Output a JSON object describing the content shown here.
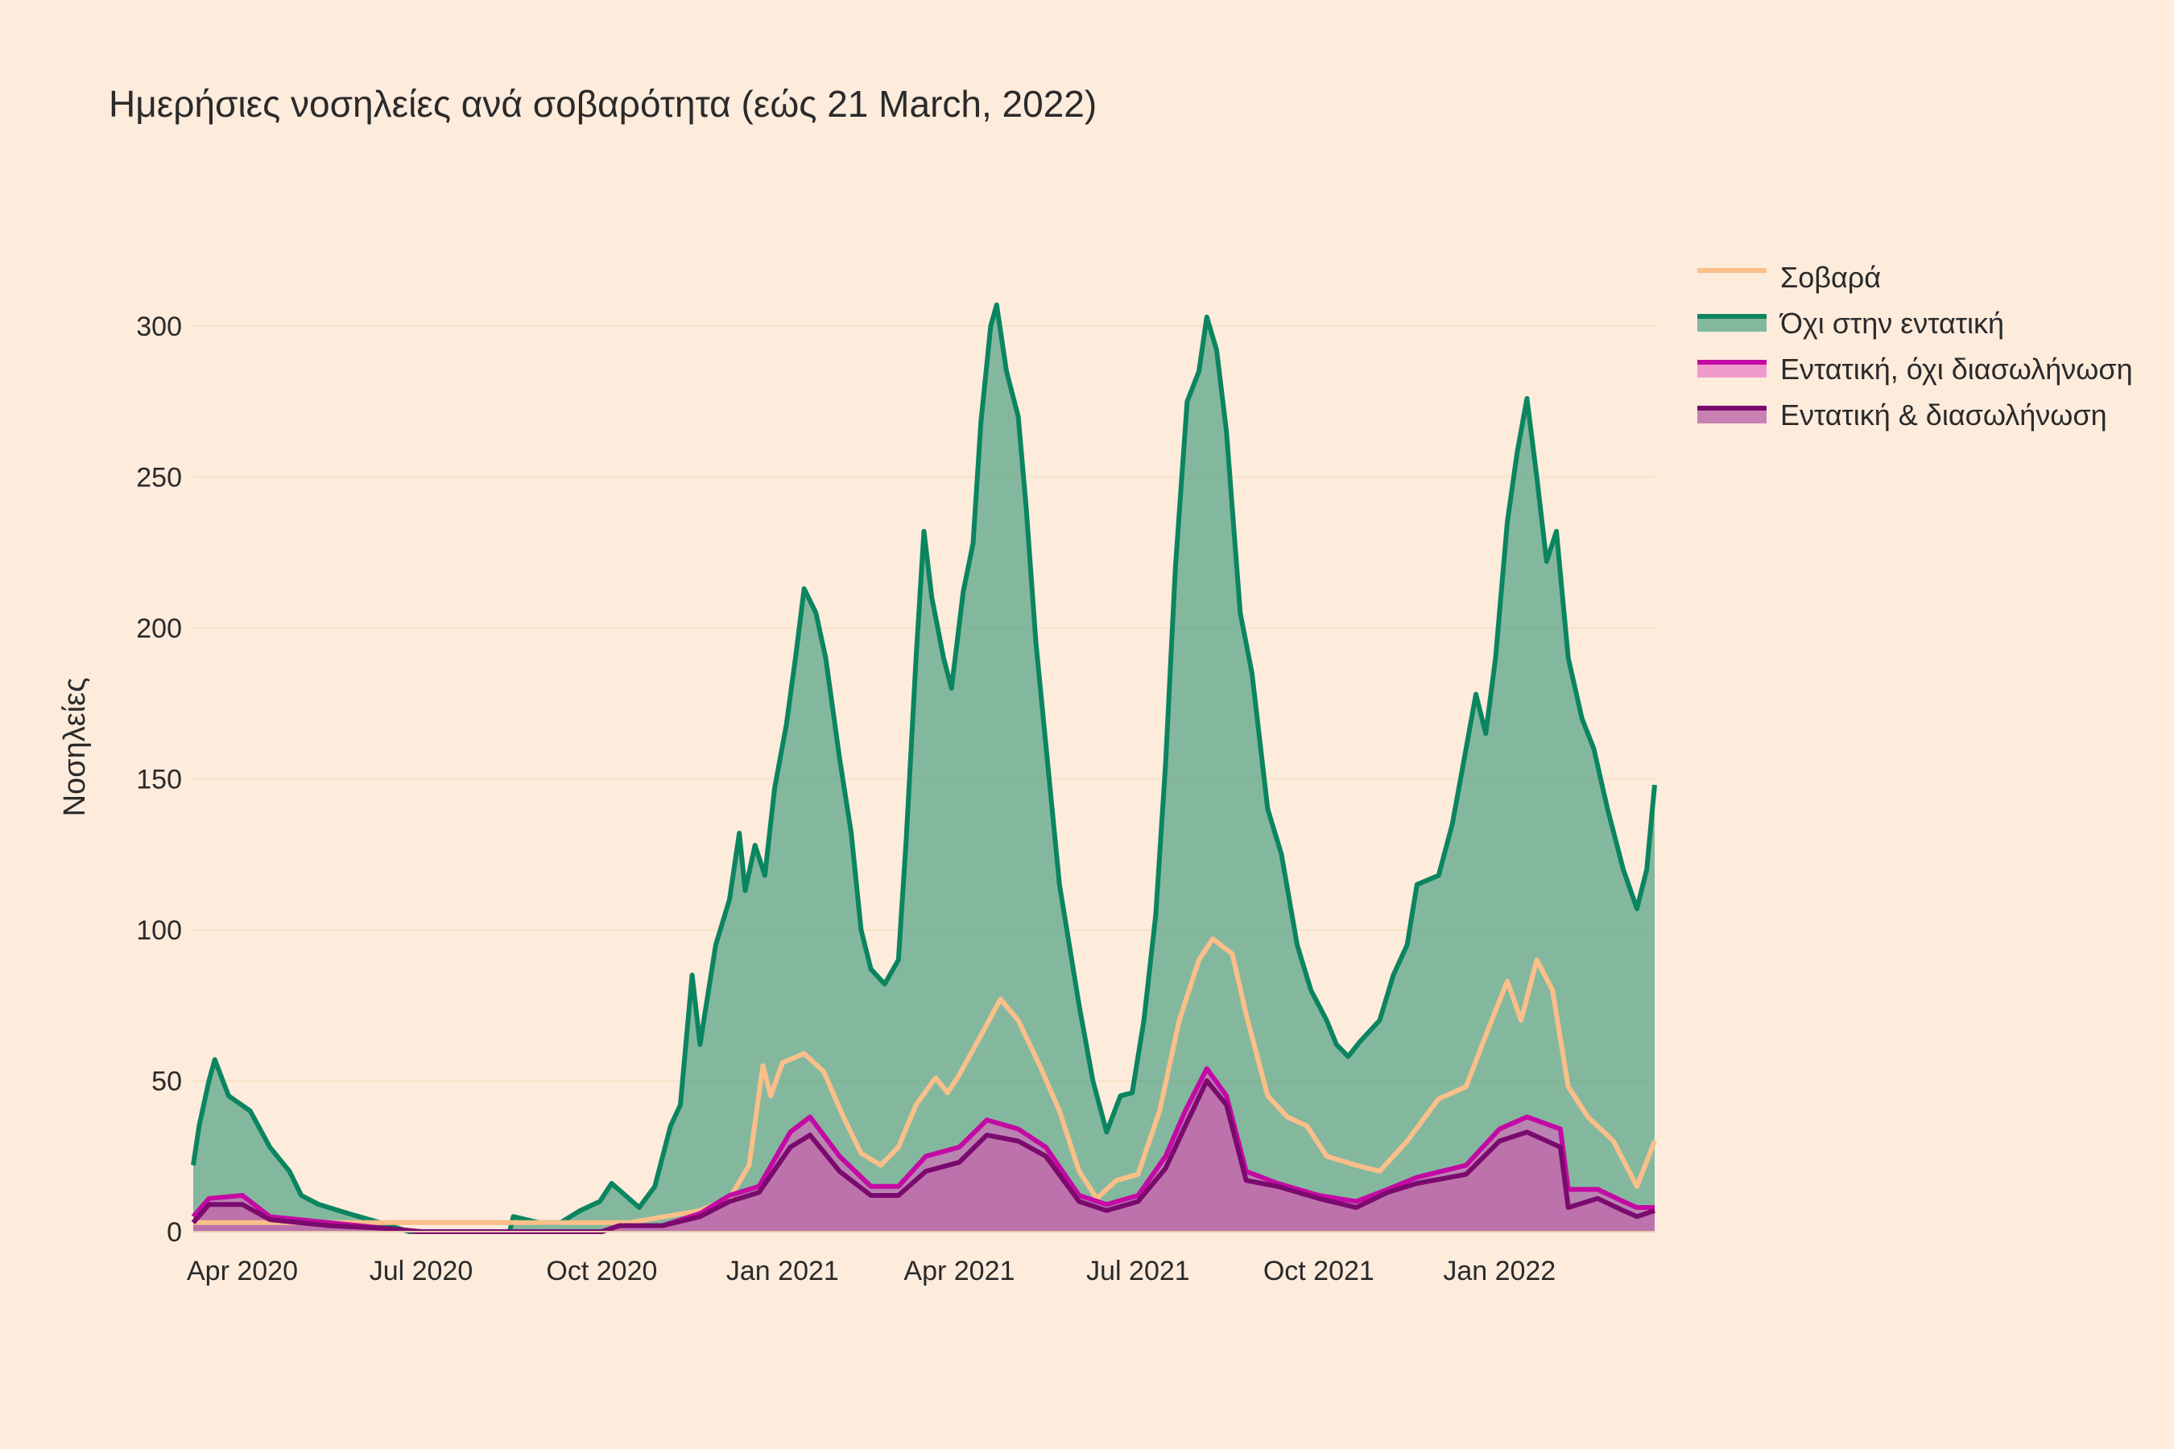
{
  "chart_data": {
    "type": "area",
    "title": "Ημερήσιες νοσηλείες ανά σοβαρότητα (εώς 21 March, 2022)",
    "xlabel": "",
    "ylabel": "Νοσηλείες",
    "x_range": [
      "2020-03-07",
      "2022-03-21"
    ],
    "ylim": [
      0,
      320
    ],
    "y_ticks": [
      0,
      50,
      100,
      150,
      200,
      250,
      300
    ],
    "x_ticks": [
      {
        "date": "2020-04-01",
        "label": "Apr 2020"
      },
      {
        "date": "2020-07-01",
        "label": "Jul 2020"
      },
      {
        "date": "2020-10-01",
        "label": "Oct 2020"
      },
      {
        "date": "2021-01-01",
        "label": "Jan 2021"
      },
      {
        "date": "2021-04-01",
        "label": "Apr 2021"
      },
      {
        "date": "2021-07-01",
        "label": "Jul 2021"
      },
      {
        "date": "2021-10-01",
        "label": "Oct 2021"
      },
      {
        "date": "2022-01-01",
        "label": "Jan 2022"
      }
    ],
    "grid": true,
    "legend_position": "top-right",
    "series": [
      {
        "name": "Σοβαρά",
        "line_color": "#fbbf8a",
        "fill_color": null,
        "points": [
          [
            "2020-03-07",
            3
          ],
          [
            "2020-10-15",
            3
          ],
          [
            "2020-11-20",
            7
          ],
          [
            "2020-12-05",
            11
          ],
          [
            "2020-12-15",
            22
          ],
          [
            "2020-12-22",
            55
          ],
          [
            "2020-12-26",
            45
          ],
          [
            "2021-01-01",
            56
          ],
          [
            "2021-01-12",
            59
          ],
          [
            "2021-01-22",
            53
          ],
          [
            "2021-02-01",
            38
          ],
          [
            "2021-02-10",
            26
          ],
          [
            "2021-02-20",
            22
          ],
          [
            "2021-03-01",
            28
          ],
          [
            "2021-03-10",
            42
          ],
          [
            "2021-03-20",
            51
          ],
          [
            "2021-03-26",
            46
          ],
          [
            "2021-04-01",
            52
          ],
          [
            "2021-04-12",
            65
          ],
          [
            "2021-04-22",
            77
          ],
          [
            "2021-05-01",
            70
          ],
          [
            "2021-05-12",
            55
          ],
          [
            "2021-05-22",
            40
          ],
          [
            "2021-06-01",
            20
          ],
          [
            "2021-06-10",
            11
          ],
          [
            "2021-06-20",
            17
          ],
          [
            "2021-07-01",
            19
          ],
          [
            "2021-07-12",
            40
          ],
          [
            "2021-07-22",
            70
          ],
          [
            "2021-08-01",
            90
          ],
          [
            "2021-08-08",
            97
          ],
          [
            "2021-08-18",
            92
          ],
          [
            "2021-08-25",
            72
          ],
          [
            "2021-09-05",
            45
          ],
          [
            "2021-09-15",
            38
          ],
          [
            "2021-09-25",
            35
          ],
          [
            "2021-10-05",
            25
          ],
          [
            "2021-10-20",
            22
          ],
          [
            "2021-11-01",
            20
          ],
          [
            "2021-11-15",
            30
          ],
          [
            "2021-12-01",
            44
          ],
          [
            "2021-12-15",
            48
          ],
          [
            "2021-12-25",
            65
          ],
          [
            "2022-01-05",
            83
          ],
          [
            "2022-01-12",
            70
          ],
          [
            "2022-01-20",
            90
          ],
          [
            "2022-01-28",
            80
          ],
          [
            "2022-02-05",
            48
          ],
          [
            "2022-02-15",
            38
          ],
          [
            "2022-02-28",
            30
          ],
          [
            "2022-03-12",
            15
          ],
          [
            "2022-03-21",
            30
          ]
        ]
      },
      {
        "name": "Όχι στην εντατική",
        "line_color": "#0b8560",
        "fill_color": "rgba(11,133,96,0.5)",
        "points": [
          [
            "2020-03-07",
            22
          ],
          [
            "2020-03-10",
            35
          ],
          [
            "2020-03-15",
            50
          ],
          [
            "2020-03-18",
            57
          ],
          [
            "2020-03-25",
            45
          ],
          [
            "2020-04-05",
            40
          ],
          [
            "2020-04-15",
            28
          ],
          [
            "2020-04-25",
            20
          ],
          [
            "2020-05-01",
            12
          ],
          [
            "2020-05-10",
            9
          ],
          [
            "2020-05-25",
            6
          ],
          [
            "2020-06-10",
            3
          ],
          [
            "2020-06-25",
            0
          ],
          [
            "2020-08-15",
            0
          ],
          [
            "2020-08-17",
            5
          ],
          [
            "2020-08-30",
            3
          ],
          [
            "2020-09-10",
            3
          ],
          [
            "2020-09-20",
            7
          ],
          [
            "2020-09-30",
            10
          ],
          [
            "2020-10-06",
            16
          ],
          [
            "2020-10-20",
            8
          ],
          [
            "2020-10-28",
            15
          ],
          [
            "2020-11-05",
            35
          ],
          [
            "2020-11-10",
            42
          ],
          [
            "2020-11-16",
            85
          ],
          [
            "2020-11-20",
            62
          ],
          [
            "2020-11-28",
            95
          ],
          [
            "2020-12-05",
            110
          ],
          [
            "2020-12-10",
            132
          ],
          [
            "2020-12-13",
            113
          ],
          [
            "2020-12-18",
            128
          ],
          [
            "2020-12-23",
            118
          ],
          [
            "2020-12-28",
            147
          ],
          [
            "2021-01-03",
            168
          ],
          [
            "2021-01-08",
            192
          ],
          [
            "2021-01-12",
            213
          ],
          [
            "2021-01-18",
            205
          ],
          [
            "2021-01-23",
            190
          ],
          [
            "2021-01-30",
            157
          ],
          [
            "2021-02-05",
            132
          ],
          [
            "2021-02-10",
            100
          ],
          [
            "2021-02-15",
            87
          ],
          [
            "2021-02-22",
            82
          ],
          [
            "2021-03-01",
            90
          ],
          [
            "2021-03-05",
            130
          ],
          [
            "2021-03-10",
            190
          ],
          [
            "2021-03-14",
            232
          ],
          [
            "2021-03-18",
            210
          ],
          [
            "2021-03-24",
            190
          ],
          [
            "2021-03-28",
            180
          ],
          [
            "2021-04-03",
            212
          ],
          [
            "2021-04-08",
            228
          ],
          [
            "2021-04-12",
            268
          ],
          [
            "2021-04-17",
            300
          ],
          [
            "2021-04-20",
            307
          ],
          [
            "2021-04-25",
            285
          ],
          [
            "2021-05-01",
            270
          ],
          [
            "2021-05-05",
            240
          ],
          [
            "2021-05-10",
            195
          ],
          [
            "2021-05-16",
            155
          ],
          [
            "2021-05-22",
            115
          ],
          [
            "2021-06-01",
            75
          ],
          [
            "2021-06-08",
            50
          ],
          [
            "2021-06-15",
            33
          ],
          [
            "2021-06-22",
            45
          ],
          [
            "2021-06-28",
            46
          ],
          [
            "2021-07-04",
            70
          ],
          [
            "2021-07-10",
            105
          ],
          [
            "2021-07-15",
            155
          ],
          [
            "2021-07-20",
            220
          ],
          [
            "2021-07-26",
            275
          ],
          [
            "2021-08-01",
            285
          ],
          [
            "2021-08-05",
            303
          ],
          [
            "2021-08-10",
            292
          ],
          [
            "2021-08-15",
            265
          ],
          [
            "2021-08-22",
            205
          ],
          [
            "2021-08-28",
            185
          ],
          [
            "2021-09-05",
            140
          ],
          [
            "2021-09-12",
            125
          ],
          [
            "2021-09-20",
            95
          ],
          [
            "2021-09-27",
            80
          ],
          [
            "2021-10-05",
            70
          ],
          [
            "2021-10-10",
            62
          ],
          [
            "2021-10-16",
            58
          ],
          [
            "2021-10-22",
            63
          ],
          [
            "2021-11-01",
            70
          ],
          [
            "2021-11-08",
            85
          ],
          [
            "2021-11-15",
            95
          ],
          [
            "2021-11-20",
            115
          ],
          [
            "2021-12-01",
            118
          ],
          [
            "2021-12-08",
            135
          ],
          [
            "2021-12-15",
            160
          ],
          [
            "2021-12-20",
            178
          ],
          [
            "2021-12-25",
            165
          ],
          [
            "2021-12-30",
            190
          ],
          [
            "2022-01-05",
            235
          ],
          [
            "2022-01-10",
            258
          ],
          [
            "2022-01-15",
            276
          ],
          [
            "2022-01-20",
            250
          ],
          [
            "2022-01-25",
            222
          ],
          [
            "2022-01-30",
            232
          ],
          [
            "2022-02-05",
            190
          ],
          [
            "2022-02-12",
            170
          ],
          [
            "2022-02-18",
            160
          ],
          [
            "2022-02-25",
            140
          ],
          [
            "2022-03-05",
            120
          ],
          [
            "2022-03-12",
            107
          ],
          [
            "2022-03-17",
            120
          ],
          [
            "2022-03-21",
            148
          ]
        ]
      },
      {
        "name": "Εντατική, όχι διασωλήνωση",
        "line_color": "#c40aa4",
        "fill_color": "rgba(230,90,195,0.55)",
        "points": [
          [
            "2020-03-07",
            5
          ],
          [
            "2020-03-15",
            11
          ],
          [
            "2020-04-01",
            12
          ],
          [
            "2020-04-15",
            5
          ],
          [
            "2020-05-15",
            3
          ],
          [
            "2020-06-15",
            1
          ],
          [
            "2020-07-01",
            0
          ],
          [
            "2020-10-01",
            0
          ],
          [
            "2020-10-10",
            2
          ],
          [
            "2020-11-01",
            2
          ],
          [
            "2020-11-20",
            6
          ],
          [
            "2020-12-05",
            12
          ],
          [
            "2020-12-20",
            15
          ],
          [
            "2021-01-05",
            33
          ],
          [
            "2021-01-15",
            38
          ],
          [
            "2021-01-30",
            25
          ],
          [
            "2021-02-15",
            15
          ],
          [
            "2021-03-01",
            15
          ],
          [
            "2021-03-15",
            25
          ],
          [
            "2021-04-01",
            28
          ],
          [
            "2021-04-15",
            37
          ],
          [
            "2021-05-01",
            34
          ],
          [
            "2021-05-15",
            28
          ],
          [
            "2021-06-01",
            12
          ],
          [
            "2021-06-15",
            9
          ],
          [
            "2021-07-01",
            12
          ],
          [
            "2021-07-15",
            25
          ],
          [
            "2021-07-25",
            40
          ],
          [
            "2021-08-05",
            54
          ],
          [
            "2021-08-15",
            45
          ],
          [
            "2021-08-25",
            20
          ],
          [
            "2021-09-10",
            16
          ],
          [
            "2021-10-01",
            12
          ],
          [
            "2021-10-20",
            10
          ],
          [
            "2021-11-05",
            14
          ],
          [
            "2021-11-20",
            18
          ],
          [
            "2021-12-15",
            22
          ],
          [
            "2022-01-01",
            34
          ],
          [
            "2022-01-15",
            38
          ],
          [
            "2022-02-01",
            34
          ],
          [
            "2022-02-05",
            14
          ],
          [
            "2022-02-20",
            14
          ],
          [
            "2022-03-05",
            10
          ],
          [
            "2022-03-12",
            8
          ],
          [
            "2022-03-21",
            8
          ]
        ]
      },
      {
        "name": "Εντατική & διασωλήνωση",
        "line_color": "#7b0a6e",
        "fill_color": "rgba(190,110,170,0.85)",
        "points": [
          [
            "2020-03-07",
            3
          ],
          [
            "2020-03-15",
            9
          ],
          [
            "2020-04-01",
            9
          ],
          [
            "2020-04-15",
            4
          ],
          [
            "2020-05-15",
            2
          ],
          [
            "2020-06-15",
            1
          ],
          [
            "2020-07-01",
            0
          ],
          [
            "2020-10-01",
            0
          ],
          [
            "2020-10-10",
            2
          ],
          [
            "2020-11-01",
            2
          ],
          [
            "2020-11-20",
            5
          ],
          [
            "2020-12-05",
            10
          ],
          [
            "2020-12-20",
            13
          ],
          [
            "2021-01-05",
            28
          ],
          [
            "2021-01-15",
            32
          ],
          [
            "2021-01-30",
            20
          ],
          [
            "2021-02-15",
            12
          ],
          [
            "2021-03-01",
            12
          ],
          [
            "2021-03-15",
            20
          ],
          [
            "2021-04-01",
            23
          ],
          [
            "2021-04-15",
            32
          ],
          [
            "2021-05-01",
            30
          ],
          [
            "2021-05-15",
            25
          ],
          [
            "2021-06-01",
            10
          ],
          [
            "2021-06-15",
            7
          ],
          [
            "2021-07-01",
            10
          ],
          [
            "2021-07-15",
            21
          ],
          [
            "2021-07-25",
            35
          ],
          [
            "2021-08-05",
            50
          ],
          [
            "2021-08-15",
            42
          ],
          [
            "2021-08-25",
            17
          ],
          [
            "2021-09-10",
            15
          ],
          [
            "2021-10-01",
            11
          ],
          [
            "2021-10-20",
            8
          ],
          [
            "2021-11-05",
            13
          ],
          [
            "2021-11-20",
            16
          ],
          [
            "2021-12-15",
            19
          ],
          [
            "2022-01-01",
            30
          ],
          [
            "2022-01-15",
            33
          ],
          [
            "2022-02-01",
            28
          ],
          [
            "2022-02-05",
            8
          ],
          [
            "2022-02-20",
            11
          ],
          [
            "2022-03-05",
            7
          ],
          [
            "2022-03-12",
            5
          ],
          [
            "2022-03-21",
            7
          ]
        ]
      }
    ]
  }
}
